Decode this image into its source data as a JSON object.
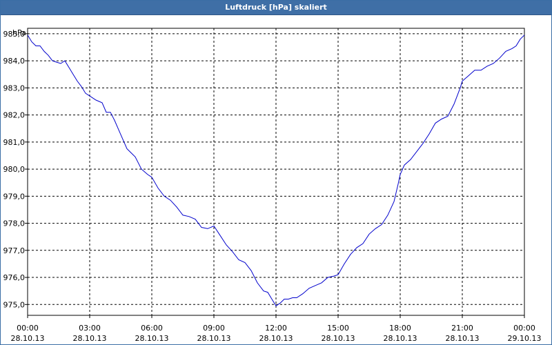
{
  "window": {
    "title": "Luftdruck [hPa] skaliert"
  },
  "chart_data": {
    "type": "line",
    "title": "Luftdruck [hPa] skaliert",
    "ylabel": "hPa",
    "xlabel": "",
    "ylim": [
      974.6,
      985.2
    ],
    "xlim": [
      0,
      24
    ],
    "grid": true,
    "y_ticks": [
      {
        "value": 975,
        "label": "975,0"
      },
      {
        "value": 976,
        "label": "976,0"
      },
      {
        "value": 977,
        "label": "977,0"
      },
      {
        "value": 978,
        "label": "978,0"
      },
      {
        "value": 979,
        "label": "979,0"
      },
      {
        "value": 980,
        "label": "980,0"
      },
      {
        "value": 981,
        "label": "981,0"
      },
      {
        "value": 982,
        "label": "982,0"
      },
      {
        "value": 983,
        "label": "983,0"
      },
      {
        "value": 984,
        "label": "984,0"
      },
      {
        "value": 985,
        "label": "985,0"
      }
    ],
    "x_ticks": [
      {
        "value": 0,
        "time": "00:00",
        "date": "28.10.13"
      },
      {
        "value": 3,
        "time": "03:00",
        "date": "28.10.13"
      },
      {
        "value": 6,
        "time": "06:00",
        "date": "28.10.13"
      },
      {
        "value": 9,
        "time": "09:00",
        "date": "28.10.13"
      },
      {
        "value": 12,
        "time": "12:00",
        "date": "28.10.13"
      },
      {
        "value": 15,
        "time": "15:00",
        "date": "28.10.13"
      },
      {
        "value": 18,
        "time": "18:00",
        "date": "28.10.13"
      },
      {
        "value": 21,
        "time": "21:00",
        "date": "28.10.13"
      },
      {
        "value": 24,
        "time": "00:00",
        "date": "29.10.13"
      }
    ],
    "series": [
      {
        "color": "#0000cc",
        "x": [
          0,
          0.2,
          0.4,
          0.6,
          0.8,
          1.0,
          1.2,
          1.4,
          1.6,
          1.8,
          2.0,
          2.2,
          2.4,
          2.6,
          2.8,
          3.0,
          3.3,
          3.6,
          3.8,
          4.0,
          4.2,
          4.4,
          4.6,
          4.8,
          5.0,
          5.2,
          5.5,
          5.8,
          6.0,
          6.3,
          6.6,
          6.9,
          7.2,
          7.5,
          7.8,
          8.1,
          8.4,
          8.7,
          9.0,
          9.3,
          9.6,
          9.9,
          10.2,
          10.5,
          10.8,
          11.1,
          11.4,
          11.6,
          11.8,
          12.0,
          12.2,
          12.4,
          12.6,
          12.8,
          13.0,
          13.3,
          13.6,
          13.9,
          14.2,
          14.5,
          14.8,
          15.0,
          15.3,
          15.6,
          15.9,
          16.2,
          16.5,
          16.8,
          17.1,
          17.4,
          17.7,
          17.9,
          18.0,
          18.2,
          18.5,
          18.8,
          19.1,
          19.4,
          19.7,
          20.0,
          20.3,
          20.6,
          20.9,
          21.0,
          21.3,
          21.6,
          21.9,
          22.2,
          22.5,
          22.8,
          23.1,
          23.4,
          23.6,
          23.8,
          24.0
        ],
        "values": [
          984.95,
          984.7,
          984.55,
          984.55,
          984.35,
          984.2,
          984.0,
          983.95,
          983.9,
          984.0,
          983.75,
          983.5,
          983.25,
          983.05,
          982.8,
          982.7,
          982.55,
          982.45,
          982.1,
          982.1,
          981.8,
          981.45,
          981.1,
          980.75,
          980.6,
          980.45,
          980.0,
          979.8,
          979.7,
          979.3,
          979.0,
          978.85,
          978.6,
          978.3,
          978.25,
          978.15,
          977.85,
          977.8,
          977.9,
          977.55,
          977.2,
          976.95,
          976.65,
          976.55,
          976.25,
          975.8,
          975.5,
          975.45,
          975.2,
          974.95,
          975.05,
          975.2,
          975.2,
          975.25,
          975.25,
          975.4,
          975.6,
          975.7,
          975.8,
          976.0,
          976.05,
          976.1,
          976.5,
          976.85,
          977.1,
          977.25,
          977.6,
          977.8,
          977.95,
          978.3,
          978.8,
          979.45,
          979.8,
          980.15,
          980.35,
          980.65,
          980.95,
          981.3,
          981.7,
          981.85,
          981.95,
          982.4,
          983.0,
          983.25,
          983.45,
          983.65,
          983.65,
          983.8,
          983.9,
          984.1,
          984.35,
          984.45,
          984.55,
          984.8,
          984.95
        ]
      }
    ]
  }
}
